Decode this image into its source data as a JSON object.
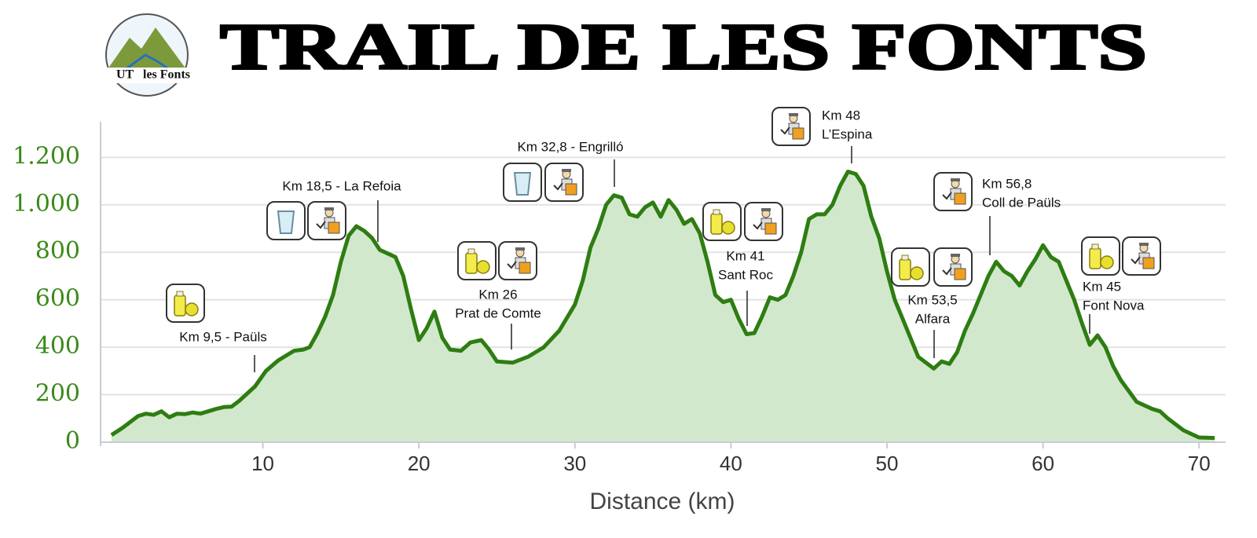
{
  "chart_data": {
    "type": "area",
    "title": "TRAIL DE LES FONTS",
    "logo": [
      "UT",
      "les Fonts"
    ],
    "xlabel": "Distance (km)",
    "x": [
      0.3,
      1,
      2,
      2.5,
      3,
      3.5,
      4,
      4.5,
      5,
      5.5,
      6,
      6.5,
      7,
      7.5,
      8,
      8.5,
      9,
      9.5,
      10.2,
      11,
      12,
      12.6,
      13,
      13.5,
      14,
      14.5,
      15,
      15.5,
      16,
      16.5,
      17,
      17.5,
      18.5,
      19,
      19.5,
      20,
      20.5,
      21,
      21.5,
      22,
      22.7,
      23.3,
      24,
      24.5,
      25,
      26,
      27,
      28,
      29,
      30,
      30.5,
      31,
      31.5,
      32,
      32.5,
      33,
      33.5,
      34,
      34.5,
      35,
      35.5,
      36,
      36.5,
      37,
      37.5,
      38,
      38.5,
      39,
      39.5,
      40,
      40.5,
      41,
      41.5,
      42,
      42.5,
      43,
      43.5,
      44,
      44.5,
      45,
      45.5,
      46,
      46.5,
      47,
      47.5,
      48,
      48.5,
      49,
      49.5,
      50,
      50.5,
      51,
      52,
      53,
      53.5,
      54,
      54.5,
      55,
      55.5,
      56,
      56.5,
      57,
      57.5,
      58,
      58.5,
      59,
      59.5,
      60,
      60.5,
      61,
      61.5,
      62,
      62.5,
      63,
      63.5,
      64,
      64.5,
      65,
      66,
      67,
      67.5,
      68,
      69,
      70,
      71
    ],
    "values": [
      30,
      60,
      110,
      120,
      115,
      130,
      105,
      120,
      118,
      125,
      120,
      130,
      140,
      148,
      150,
      175,
      205,
      235,
      300,
      345,
      385,
      390,
      400,
      460,
      530,
      620,
      760,
      870,
      910,
      890,
      860,
      810,
      780,
      700,
      560,
      430,
      480,
      550,
      440,
      390,
      385,
      420,
      430,
      390,
      340,
      335,
      360,
      400,
      470,
      580,
      680,
      820,
      900,
      1000,
      1040,
      1030,
      960,
      950,
      990,
      1010,
      950,
      1020,
      980,
      920,
      940,
      880,
      760,
      620,
      590,
      600,
      520,
      455,
      460,
      530,
      610,
      600,
      620,
      700,
      800,
      940,
      960,
      960,
      1000,
      1080,
      1140,
      1130,
      1080,
      950,
      860,
      720,
      600,
      520,
      360,
      310,
      340,
      330,
      380,
      470,
      540,
      620,
      700,
      760,
      720,
      700,
      660,
      720,
      770,
      830,
      780,
      760,
      680,
      600,
      500,
      410,
      450,
      400,
      320,
      260,
      170,
      140,
      130,
      100,
      50,
      20,
      18
    ],
    "color": "#2e7d12",
    "fill": "#d2e8cc",
    "xlim": [
      -0.4,
      71.7
    ],
    "xticks": [
      10,
      20,
      30,
      40,
      50,
      60,
      70
    ],
    "ylim": [
      0,
      1350
    ],
    "yticks": [
      0,
      200,
      400,
      600,
      800,
      {
        "value": 1000,
        "label": "1.000"
      },
      {
        "value": 1200,
        "label": "1.200"
      }
    ],
    "grid": true,
    "annotations": [
      [
        "Km 9,5 - Paüls"
      ],
      [
        "Km 18,5 - La Refoia"
      ],
      [
        "Km 26",
        "Prat de Comte"
      ],
      [
        "Km 32,8 - Engrilló"
      ],
      [
        "Km 41",
        "Sant Roc"
      ],
      [
        "Km 48",
        "L’Espina"
      ],
      [
        "Km 53,5",
        "Alfara"
      ],
      [
        "Km 56,8",
        "Coll de Paüls"
      ],
      [
        "Km 45",
        "Font Nova"
      ]
    ]
  }
}
